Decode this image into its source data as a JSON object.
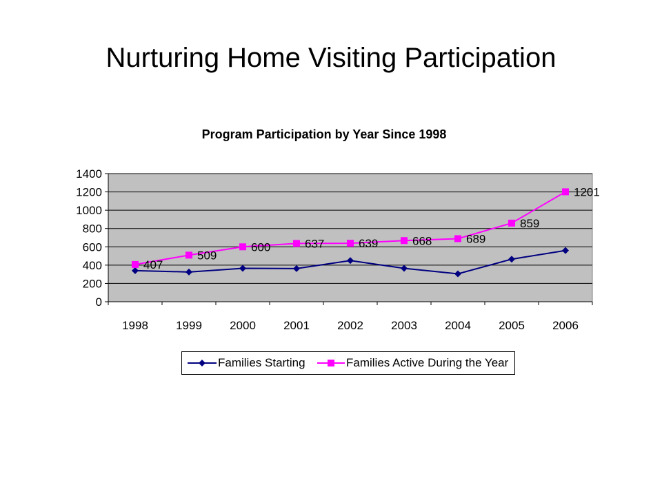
{
  "slide": {
    "title": "Nurturing Home Visiting Participation"
  },
  "colors": {
    "plot_background": "#c0c0c0",
    "gridline": "#000000",
    "series_families_starting": "#000080",
    "series_families_active": "#ff00ff"
  },
  "chart_data": {
    "type": "line",
    "title": "Program Participation by Year Since 1998",
    "xlabel": "",
    "ylabel": "",
    "categories": [
      "1998",
      "1999",
      "2000",
      "2001",
      "2002",
      "2003",
      "2004",
      "2005",
      "2006"
    ],
    "ylim": [
      0,
      1400
    ],
    "yticks": [
      0,
      200,
      400,
      600,
      800,
      1000,
      1200,
      1400
    ],
    "grid": true,
    "legend_position": "bottom",
    "series": [
      {
        "name": "Families Starting",
        "marker": "diamond",
        "values": [
          340,
          325,
          365,
          362,
          450,
          365,
          305,
          465,
          560
        ],
        "show_labels": false
      },
      {
        "name": "Families Active During the Year",
        "marker": "square",
        "values": [
          407,
          509,
          600,
          637,
          639,
          668,
          689,
          859,
          1201
        ],
        "show_labels": true
      }
    ]
  }
}
